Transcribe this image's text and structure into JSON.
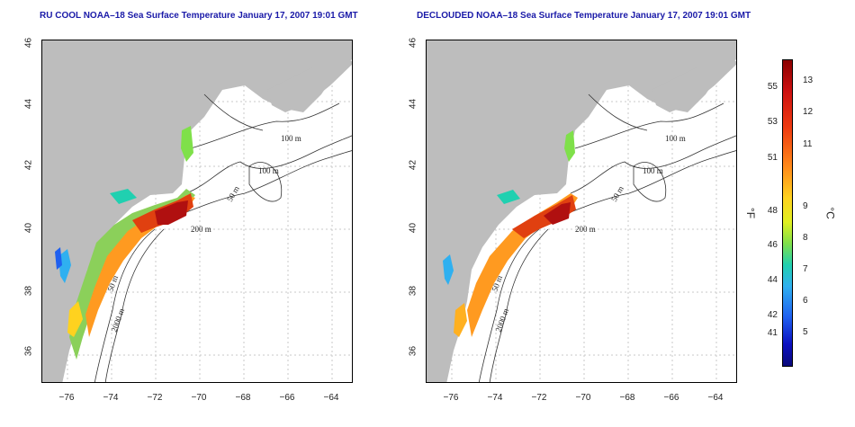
{
  "left_map": {
    "title": "RU COOL NOAA–18 Sea Surface Temperature January 17, 2007 19:01 GMT",
    "contour_labels": [
      "100 m",
      "100 m",
      "50 m",
      "200 m",
      "50 m",
      "2000 m"
    ]
  },
  "right_map": {
    "title": "DECLOUDED NOAA–18 Sea Surface Temperature January 17, 2007 19:01 GMT",
    "contour_labels": [
      "100 m",
      "100 m",
      "50 m",
      "200 m",
      "50 m",
      "2000 m"
    ]
  },
  "axes": {
    "lat_ticks": [
      "36",
      "38",
      "40",
      "42",
      "44",
      "46"
    ],
    "lon_ticks": [
      "−76",
      "−74",
      "−72",
      "−70",
      "−68",
      "−66",
      "−64"
    ]
  },
  "colorbar": {
    "fahrenheit_ticks": [
      "55",
      "53",
      "51",
      "48",
      "46",
      "44",
      "42",
      "41"
    ],
    "celsius_ticks": [
      "13",
      "12",
      "11",
      "9",
      "8",
      "7",
      "6",
      "5"
    ],
    "f_unit": "°F",
    "c_unit": "°C"
  },
  "colors": {
    "land": "#bdbdbd",
    "title": "#1a1aa8",
    "warm": "#cc1010",
    "cool": "#1f60f0"
  }
}
